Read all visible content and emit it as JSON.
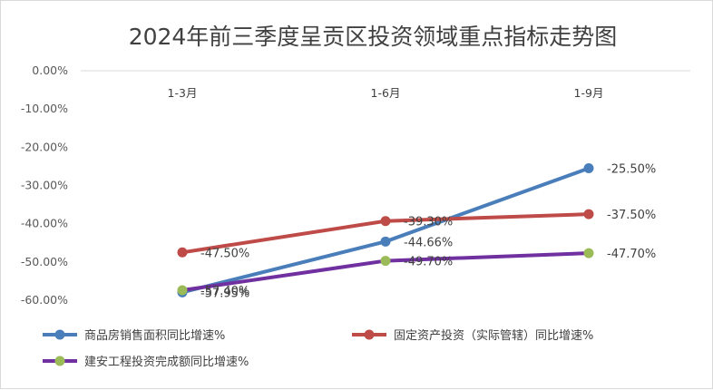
{
  "chart_data": {
    "type": "line",
    "title": "2024年前三季度呈贡区投资领域重点指标走势图",
    "categories": [
      "1-3月",
      "1-6月",
      "1-9月"
    ],
    "ylim": [
      -60,
      0
    ],
    "y_ticks": [
      "0.00%",
      "-10.00%",
      "-20.00%",
      "-30.00%",
      "-40.00%",
      "-50.00%",
      "-60.00%"
    ],
    "x_axis_position": "top",
    "grid": false,
    "legend_position": "bottom",
    "series": [
      {
        "name": "商品房销售面积同比增速%",
        "color": "#4a7ebb",
        "values": [
          -57.95,
          -44.66,
          -25.5
        ],
        "labels": [
          "-57.95%",
          "-44.66%",
          "-25.50%"
        ]
      },
      {
        "name": "固定资产投资（实际管辖）同比增速%",
        "color": "#be4b48",
        "values": [
          -47.5,
          -39.3,
          -37.5
        ],
        "labels": [
          "-47.50%",
          "-39.30%",
          "-37.50%"
        ]
      },
      {
        "name": "建安工程投资完成额同比增速%",
        "color": "#7030a0",
        "marker_color": "#9bbb59",
        "values": [
          -57.4,
          -49.7,
          -47.7
        ],
        "labels": [
          "-57.40%",
          "-49.70%",
          "-47.70%"
        ]
      }
    ]
  }
}
